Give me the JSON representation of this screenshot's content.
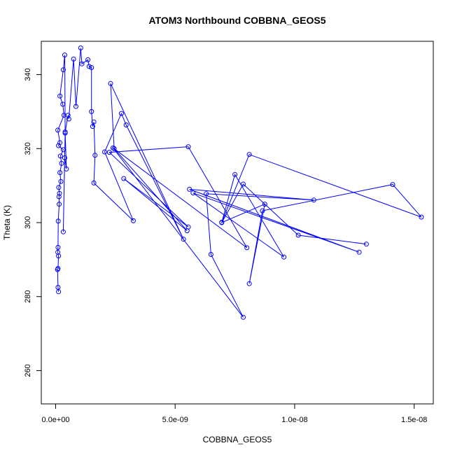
{
  "chart_data": {
    "type": "line",
    "title": "ATOM3 Northbound COBBNA_GEOS5",
    "xlabel": "COBBNA_GEOS5",
    "ylabel": "Theta (K)",
    "xlim": [
      -6e-10,
      1.58e-08
    ],
    "ylim": [
      251,
      349
    ],
    "x_ticks": [
      {
        "value": 0,
        "label": "0.0e+00"
      },
      {
        "value": 5e-09,
        "label": "5.0e-09"
      },
      {
        "value": 1e-08,
        "label": "1.0e-08"
      },
      {
        "value": 1.5e-08,
        "label": "1.5e-08"
      }
    ],
    "y_ticks": [
      {
        "value": 260,
        "label": "260"
      },
      {
        "value": 280,
        "label": "280"
      },
      {
        "value": 300,
        "label": "300"
      },
      {
        "value": 320,
        "label": "320"
      },
      {
        "value": 340,
        "label": "340"
      }
    ],
    "grid": false,
    "color": "#0000ff",
    "series": [
      {
        "points": [
          [
            1.2e-10,
            281.3
          ],
          [
            1e-10,
            282.5
          ],
          [
            8e-11,
            287.3
          ],
          [
            1e-10,
            287.6
          ],
          [
            1.2e-10,
            291.0
          ],
          [
            9e-11,
            292.0
          ],
          [
            1e-10,
            293.3
          ],
          [
            1.1e-10,
            300.4
          ],
          [
            1.5e-10,
            305.0
          ],
          [
            1.4e-10,
            307.0
          ],
          [
            1.6e-10,
            307.9
          ],
          [
            1.3e-10,
            309.5
          ],
          [
            2.2e-10,
            311.1
          ],
          [
            1.8e-10,
            313.5
          ],
          [
            2.5e-10,
            316.0
          ],
          [
            2e-10,
            318.0
          ],
          [
            3.2e-10,
            319.7
          ],
          [
            1.2e-10,
            320.8
          ],
          [
            1.8e-10,
            321.6
          ],
          [
            9e-11,
            325.0
          ],
          [
            3.5e-10,
            329.0
          ],
          [
            3e-10,
            332.0
          ],
          [
            1.8e-10,
            334.2
          ],
          [
            3.2e-10,
            341.3
          ],
          [
            3.8e-10,
            345.3
          ],
          [
            4e-10,
            324.2
          ],
          [
            4.5e-10,
            314.5
          ],
          [
            3.8e-10,
            317.5
          ],
          [
            3.2e-10,
            297.5
          ],
          [
            4e-10,
            324.5
          ],
          [
            5.2e-10,
            329.0
          ],
          [
            5.5e-10,
            328.0
          ],
          [
            7.5e-10,
            344.2
          ],
          [
            8.5e-10,
            331.4
          ],
          [
            1.05e-09,
            347.2
          ],
          [
            1.1e-09,
            342.9
          ],
          [
            1.35e-09,
            344.0
          ],
          [
            1.4e-09,
            342.2
          ],
          [
            1.5e-09,
            341.9
          ],
          [
            1.5e-09,
            330.0
          ],
          [
            1.55e-09,
            326.0
          ],
          [
            1.6e-09,
            327.2
          ],
          [
            1.65e-09,
            318.2
          ],
          [
            1.6e-09,
            310.7
          ],
          [
            3.25e-09,
            300.5
          ],
          [
            2.05e-09,
            319.1
          ],
          [
            2.75e-09,
            329.5
          ],
          [
            2.95e-09,
            326.4
          ],
          [
            5.35e-09,
            295.5
          ],
          [
            2.3e-09,
            337.6
          ],
          [
            2.45e-09,
            320.0
          ],
          [
            5.5e-09,
            297.8
          ],
          [
            2.85e-09,
            311.9
          ],
          [
            5.55e-09,
            298.8
          ],
          [
            2.25e-09,
            319.0
          ],
          [
            5.55e-09,
            320.5
          ],
          [
            8e-09,
            293.2
          ],
          [
            2.4e-09,
            320.2
          ],
          [
            7.85e-09,
            274.4
          ],
          [
            6.5e-09,
            291.4
          ],
          [
            6.3e-09,
            307.8
          ],
          [
            1.08e-08,
            306.1
          ],
          [
            5.6e-09,
            309.0
          ],
          [
            1.27e-08,
            292.0
          ],
          [
            5.75e-09,
            308.0
          ],
          [
            9.55e-09,
            290.7
          ],
          [
            7.5e-09,
            313.0
          ],
          [
            6.95e-09,
            300.1
          ],
          [
            8.1e-09,
            318.4
          ],
          [
            1.53e-08,
            301.5
          ],
          [
            1.41e-08,
            310.3
          ],
          [
            8.65e-09,
            303.2
          ],
          [
            8.1e-09,
            283.5
          ],
          [
            8.75e-09,
            305.0
          ],
          [
            6.95e-09,
            300.0
          ],
          [
            7.85e-09,
            310.4
          ],
          [
            1.015e-08,
            296.6
          ],
          [
            1.3e-08,
            294.2
          ]
        ]
      }
    ]
  }
}
